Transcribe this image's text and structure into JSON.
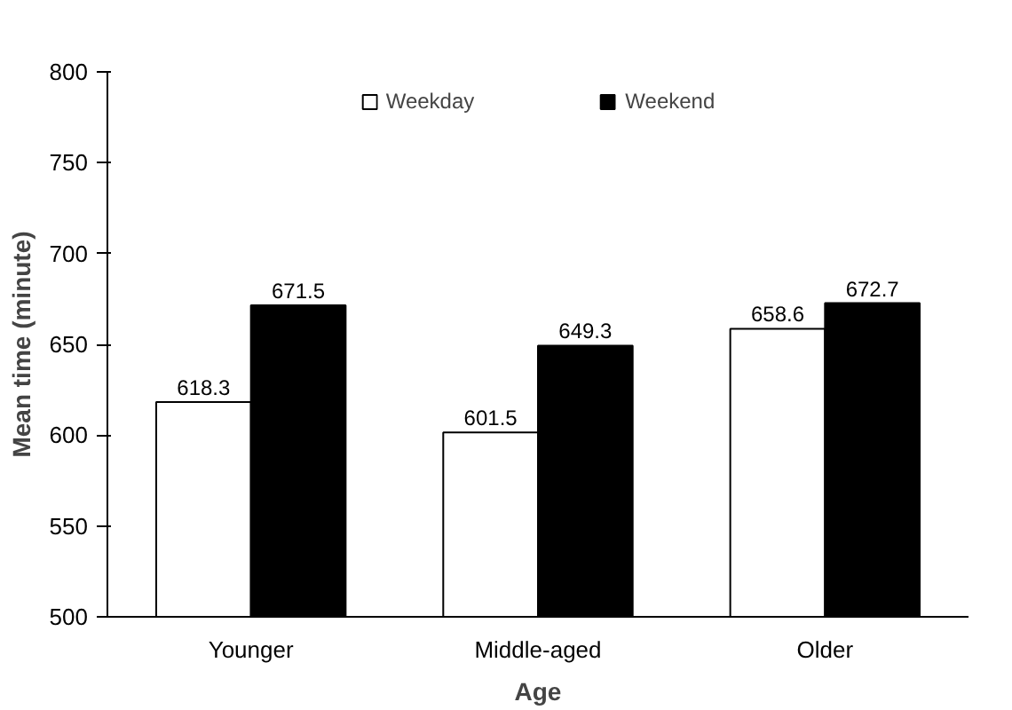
{
  "chart_data": {
    "type": "bar",
    "xlabel": "Age",
    "ylabel": "Mean time (minute)",
    "categories": [
      "Younger",
      "Middle-aged",
      "Older"
    ],
    "series": [
      {
        "name": "Weekday",
        "color": "#ffffff",
        "values": [
          618.3,
          601.5,
          658.6
        ]
      },
      {
        "name": "Weekend",
        "color": "#000000",
        "values": [
          671.5,
          649.3,
          672.7
        ]
      }
    ],
    "ylim": [
      500,
      800
    ],
    "yticks": [
      500,
      550,
      600,
      650,
      700,
      750,
      800
    ],
    "grid": false,
    "legend": "top",
    "data_labels": true
  }
}
